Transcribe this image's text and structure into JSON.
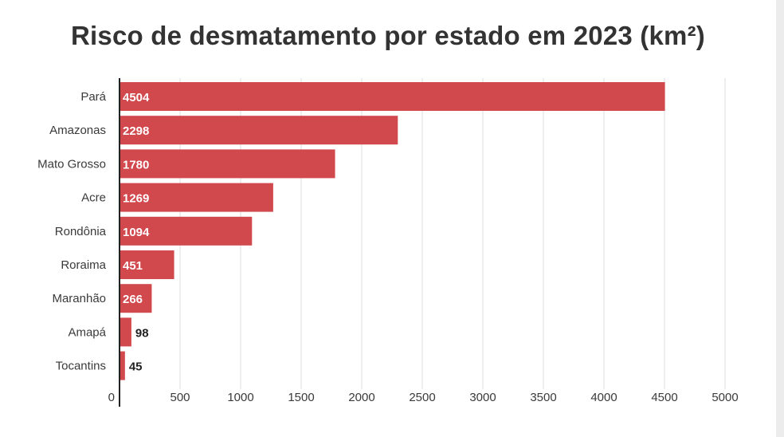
{
  "title": "Risco de desmatamento por estado em 2023 (km²)",
  "chart_data": {
    "type": "bar",
    "orientation": "horizontal",
    "title": "Risco de desmatamento por estado em 2023 (km²)",
    "categories": [
      "Pará",
      "Amazonas",
      "Mato Grosso",
      "Acre",
      "Rondônia",
      "Roraima",
      "Maranhão",
      "Amapá",
      "Tocantins"
    ],
    "values": [
      4504,
      2298,
      1780,
      1269,
      1094,
      451,
      266,
      98,
      45
    ],
    "xlabel": "",
    "ylabel": "",
    "xlim": [
      0,
      5000
    ],
    "xticks": [
      0,
      500,
      1000,
      1500,
      2000,
      2500,
      3000,
      3500,
      4000,
      4500,
      5000
    ],
    "grid": "vertical",
    "legend": "none",
    "bar_color": "#d1484d",
    "axis_color": "#222222",
    "grid_color": "#dcdcdc"
  }
}
